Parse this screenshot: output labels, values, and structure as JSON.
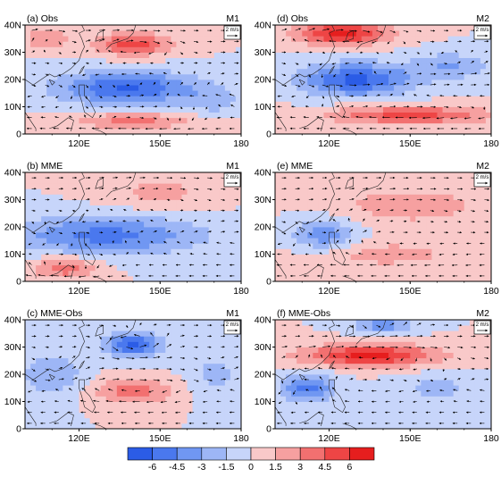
{
  "chart_data": {
    "type": "heatmap",
    "panels": [
      {
        "label": "(a) Obs",
        "tag": "M1"
      },
      {
        "label": "(d) Obs",
        "tag": "M2"
      },
      {
        "label": "(b) MME",
        "tag": "M1"
      },
      {
        "label": "(e) MME",
        "tag": "M2"
      },
      {
        "label": "(c) MME-Obs",
        "tag": "M1"
      },
      {
        "label": "(f) MME-Obs",
        "tag": "M2"
      }
    ],
    "x_ticks": [
      "120E",
      "150E",
      "180"
    ],
    "y_ticks": [
      "0",
      "10N",
      "20N",
      "30N",
      "40N"
    ],
    "xlim": [
      100,
      180
    ],
    "ylim": [
      0,
      40
    ],
    "reference_vector": "2 m/s",
    "colorbar": {
      "ticks": [
        "-6",
        "-4.5",
        "-3",
        "-1.5",
        "0",
        "1.5",
        "3",
        "4.5",
        "6"
      ],
      "colors": [
        "#2b5ce6",
        "#4a78ee",
        "#7097f2",
        "#9db6f6",
        "#c7d5fa",
        "#f9c9c9",
        "#f6a0a0",
        "#f27070",
        "#ee4545",
        "#e61e1e"
      ]
    }
  }
}
